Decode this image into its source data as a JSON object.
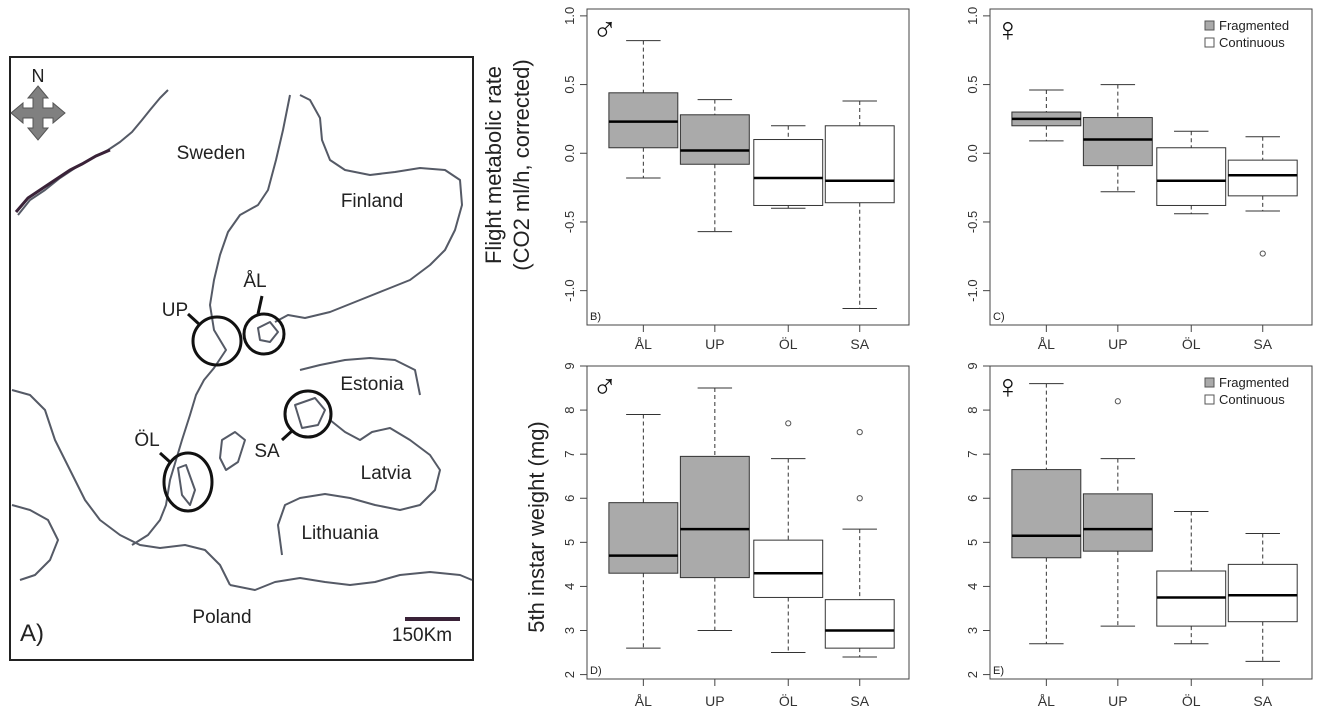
{
  "map": {
    "panel_label": "A)",
    "north": "N",
    "scale_label": "150Km",
    "countries": [
      "Sweden",
      "Finland",
      "Estonia",
      "Latvia",
      "Lithuania",
      "Poland"
    ],
    "sites": [
      "ÅL",
      "UP",
      "ÖL",
      "SA"
    ]
  },
  "y_titles": {
    "top_line1": "Flight metabolic rate",
    "top_line2": "(CO2 ml/h, corrected)",
    "bottom": "5th instar weight (mg)"
  },
  "symbols": {
    "male": "♂",
    "female": "♀"
  },
  "legend": [
    {
      "label": "Fragmented",
      "color": "#aaaaaa"
    },
    {
      "label": "Continuous",
      "color": "#ffffff"
    }
  ],
  "chart_data": [
    {
      "type": "box",
      "panel": "B)",
      "sex": "male",
      "categories": [
        "ÅL",
        "UP",
        "ÖL",
        "SA"
      ],
      "ylim": [
        -1.25,
        1.05
      ],
      "yticks": [
        "1.0",
        "0.5",
        "0.0",
        "-0.5",
        "-1.0"
      ],
      "yticks_values": [
        1.0,
        0.5,
        0.0,
        -0.5,
        -1.0
      ],
      "boxes": [
        {
          "min": -0.18,
          "q1": 0.04,
          "median": 0.23,
          "q3": 0.44,
          "max": 0.82,
          "group": "Fragmented",
          "outliers": []
        },
        {
          "min": -0.57,
          "q1": -0.08,
          "median": 0.02,
          "q3": 0.28,
          "max": 0.39,
          "group": "Fragmented",
          "outliers": []
        },
        {
          "min": -0.4,
          "q1": -0.38,
          "median": -0.18,
          "q3": 0.1,
          "max": 0.2,
          "group": "Continuous",
          "outliers": []
        },
        {
          "min": -1.13,
          "q1": -0.36,
          "median": -0.2,
          "q3": 0.2,
          "max": 0.38,
          "group": "Continuous",
          "outliers": []
        }
      ]
    },
    {
      "type": "box",
      "panel": "C)",
      "sex": "female",
      "categories": [
        "ÅL",
        "UP",
        "ÖL",
        "SA"
      ],
      "ylim": [
        -1.25,
        1.05
      ],
      "yticks": [
        "1.0",
        "0.5",
        "0.0",
        "-0.5",
        "-1.0"
      ],
      "yticks_values": [
        1.0,
        0.5,
        0.0,
        -0.5,
        -1.0
      ],
      "boxes": [
        {
          "min": 0.09,
          "q1": 0.2,
          "median": 0.25,
          "q3": 0.3,
          "max": 0.46,
          "group": "Fragmented",
          "outliers": []
        },
        {
          "min": -0.28,
          "q1": -0.09,
          "median": 0.1,
          "q3": 0.26,
          "max": 0.5,
          "group": "Fragmented",
          "outliers": []
        },
        {
          "min": -0.44,
          "q1": -0.38,
          "median": -0.2,
          "q3": 0.04,
          "max": 0.16,
          "group": "Continuous",
          "outliers": []
        },
        {
          "min": -0.42,
          "q1": -0.31,
          "median": -0.16,
          "q3": -0.05,
          "max": 0.12,
          "group": "Continuous",
          "outliers": [
            -0.73
          ]
        }
      ]
    },
    {
      "type": "box",
      "panel": "D)",
      "sex": "male",
      "categories": [
        "ÅL",
        "UP",
        "ÖL",
        "SA"
      ],
      "ylim": [
        1.9,
        9.0
      ],
      "yticks": [
        "9",
        "8",
        "7",
        "6",
        "5",
        "4",
        "3",
        "2"
      ],
      "yticks_values": [
        9,
        8,
        7,
        6,
        5,
        4,
        3,
        2
      ],
      "boxes": [
        {
          "min": 2.6,
          "q1": 4.3,
          "median": 4.7,
          "q3": 5.9,
          "max": 7.9,
          "group": "Fragmented",
          "outliers": []
        },
        {
          "min": 3.0,
          "q1": 4.2,
          "median": 5.3,
          "q3": 6.95,
          "max": 8.5,
          "group": "Fragmented",
          "outliers": []
        },
        {
          "min": 2.5,
          "q1": 3.75,
          "median": 4.3,
          "q3": 5.05,
          "max": 6.9,
          "group": "Continuous",
          "outliers": [
            7.7
          ]
        },
        {
          "min": 2.4,
          "q1": 2.6,
          "median": 3.0,
          "q3": 3.7,
          "max": 5.3,
          "group": "Continuous",
          "outliers": [
            7.5,
            6.0
          ]
        }
      ]
    },
    {
      "type": "box",
      "panel": "E)",
      "sex": "female",
      "categories": [
        "ÅL",
        "UP",
        "ÖL",
        "SA"
      ],
      "ylim": [
        1.9,
        9.0
      ],
      "yticks": [
        "9",
        "8",
        "7",
        "6",
        "5",
        "4",
        "3",
        "2"
      ],
      "yticks_values": [
        9,
        8,
        7,
        6,
        5,
        4,
        3,
        2
      ],
      "boxes": [
        {
          "min": 2.7,
          "q1": 4.65,
          "median": 5.15,
          "q3": 6.65,
          "max": 8.6,
          "group": "Fragmented",
          "outliers": []
        },
        {
          "min": 3.1,
          "q1": 4.8,
          "median": 5.3,
          "q3": 6.1,
          "max": 6.9,
          "group": "Fragmented",
          "outliers": [
            8.2
          ]
        },
        {
          "min": 2.7,
          "q1": 3.1,
          "median": 3.75,
          "q3": 4.35,
          "max": 5.7,
          "group": "Continuous",
          "outliers": []
        },
        {
          "min": 2.3,
          "q1": 3.2,
          "median": 3.8,
          "q3": 4.5,
          "max": 5.2,
          "group": "Continuous",
          "outliers": []
        }
      ]
    }
  ]
}
